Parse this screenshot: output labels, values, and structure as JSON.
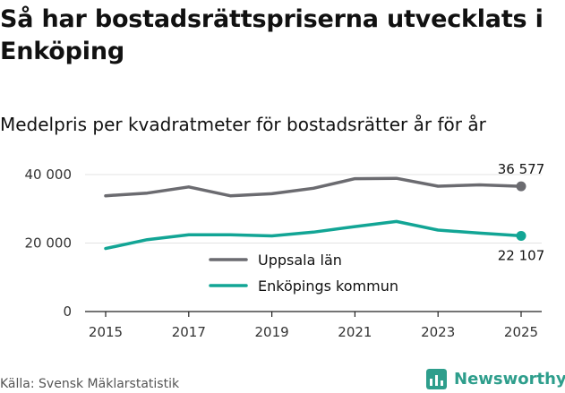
{
  "header": {
    "title": "Så har bostadsrättspriserna utvecklats i Enköping",
    "subtitle": "Medelpris per kvadratmeter för bostadsrätter år för år"
  },
  "footer": {
    "source": "Källa: Svensk Mäklarstatistik",
    "brand": "Newsworthy"
  },
  "colors": {
    "uppsala": "#6b6b70",
    "enkoping": "#12a595",
    "grid": "#e3e3e3",
    "axis": "#222222",
    "brand": "#2e9e8c"
  },
  "icons": {
    "brand": "bar-chart-logo-icon"
  },
  "chart_data": {
    "type": "line",
    "title": "Medelpris per kvadratmeter för bostadsrätter år för år",
    "xlabel": "",
    "ylabel": "",
    "x": [
      2015,
      2016,
      2017,
      2018,
      2019,
      2020,
      2021,
      2022,
      2023,
      2024,
      2025
    ],
    "xticks": [
      2015,
      2017,
      2019,
      2021,
      2023,
      2025
    ],
    "xtick_labels": [
      "2015",
      "2017",
      "2019",
      "2021",
      "2023",
      "2025"
    ],
    "ylim": [
      0,
      40000
    ],
    "yticks": [
      0,
      20000,
      40000
    ],
    "ytick_labels": [
      "0",
      "20 000",
      "40 000"
    ],
    "grid": true,
    "legend_position": "center",
    "series": [
      {
        "name": "Uppsala län",
        "color_key": "uppsala",
        "values": [
          33800,
          34600,
          36400,
          33800,
          34400,
          36000,
          38800,
          38900,
          36600,
          37000,
          36577
        ],
        "end_label": "36 577",
        "end_label_position": "above"
      },
      {
        "name": "Enköpings kommun",
        "color_key": "enkoping",
        "values": [
          18400,
          21000,
          22400,
          22400,
          22100,
          23200,
          24800,
          26300,
          23800,
          22900,
          22107
        ],
        "end_label": "22 107",
        "end_label_position": "below"
      }
    ]
  }
}
